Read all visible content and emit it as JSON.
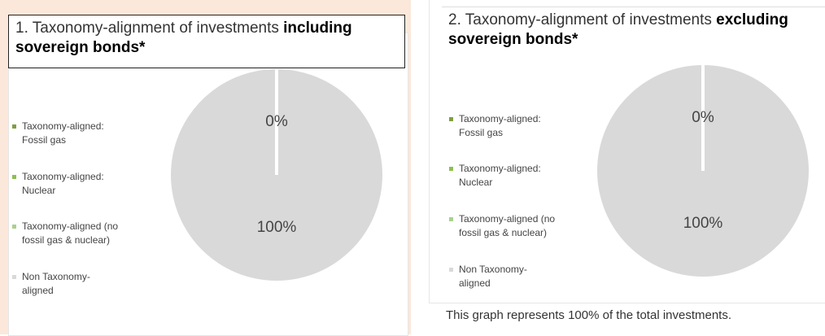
{
  "chart_data": [
    {
      "type": "pie",
      "title": [
        "1. Taxonomy-alignment of investments",
        "including sovereign bonds*"
      ],
      "categories": [
        "Taxonomy-aligned: Fossil gas",
        "Taxonomy-aligned: Nuclear",
        "Taxonomy-aligned (no fossil gas & nuclear)",
        "Non Taxonomy-aligned"
      ],
      "values": [
        0,
        0,
        0,
        100
      ],
      "value_labels": [
        "0%",
        null,
        null,
        "100%"
      ],
      "colors": [
        "#7f9f3f",
        "#8fbf4f",
        "#a9d18e",
        "#d9d9d9"
      ]
    },
    {
      "type": "pie",
      "title": [
        "2. Taxonomy-alignment of investments",
        "excluding sovereign bonds*"
      ],
      "categories": [
        "Taxonomy-aligned: Fossil gas",
        "Taxonomy-aligned: Nuclear",
        "Taxonomy-aligned (no fossil gas & nuclear)",
        "Non Taxonomy-aligned"
      ],
      "values": [
        0,
        0,
        0,
        100
      ],
      "value_labels": [
        "0%",
        null,
        null,
        "100%"
      ],
      "colors": [
        "#7f9f3f",
        "#8fbf4f",
        "#a9d18e",
        "#d9d9d9"
      ]
    }
  ],
  "note": "This graph represents 100% of the total investments."
}
